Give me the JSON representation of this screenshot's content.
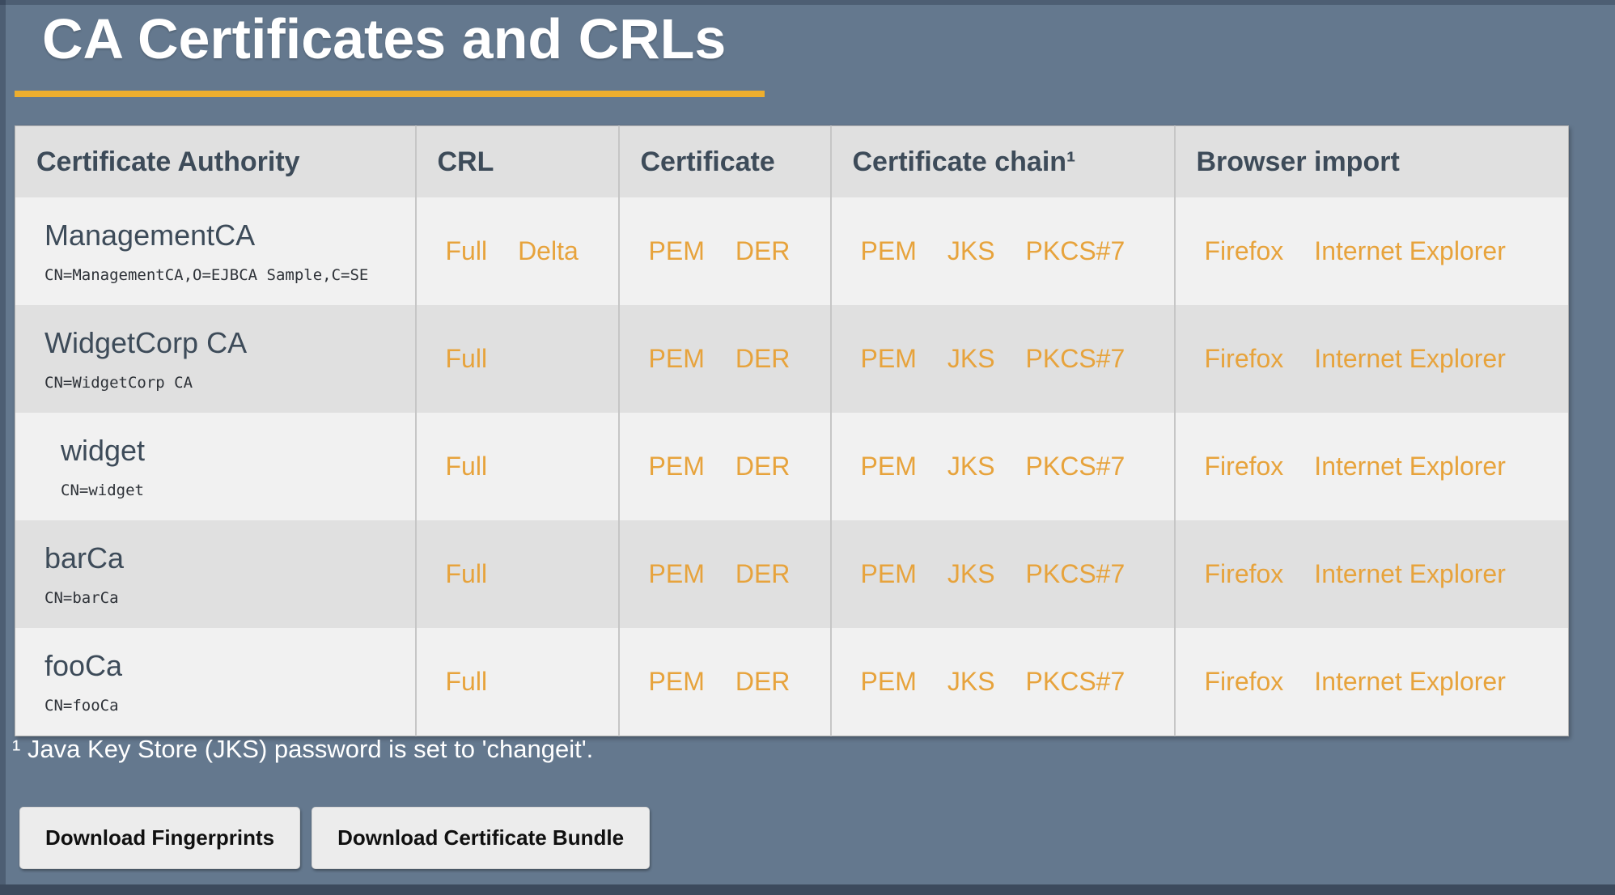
{
  "page": {
    "title": "CA Certificates and CRLs",
    "footnote": "¹ Java Key Store (JKS) password is set to 'changeit'.",
    "actions": {
      "fingerprints_label": "Download Fingerprints",
      "bundle_label": "Download Certificate Bundle"
    },
    "colors": {
      "background": "#64788e",
      "accent_rule": "#edae2e",
      "link": "#e7a33c",
      "header_bg": "#e0e0e0",
      "row_light": "#f1f1f1",
      "row_dark": "#e0e0e0",
      "heading_text": "#3d4b59"
    }
  },
  "table": {
    "columns": [
      {
        "label": "Certificate Authority",
        "group": "ca"
      },
      {
        "label": "CRL",
        "group": "crl",
        "key": "crl_links"
      },
      {
        "label": "Certificate",
        "group": "cert",
        "key": "certificate_links"
      },
      {
        "label": "Certificate chain¹",
        "group": "chain",
        "key": "chain_links"
      },
      {
        "label": "Browser import",
        "group": "browser",
        "key": "browser_links"
      }
    ],
    "rows": [
      {
        "name": "ManagementCA",
        "dn": "CN=ManagementCA,O=EJBCA Sample,C=SE",
        "indented": false,
        "crl_links": [
          "Full",
          "Delta"
        ],
        "certificate_links": [
          "PEM",
          "DER"
        ],
        "chain_links": [
          "PEM",
          "JKS",
          "PKCS#7"
        ],
        "browser_links": [
          "Firefox",
          "Internet Explorer"
        ]
      },
      {
        "name": "WidgetCorp CA",
        "dn": "CN=WidgetCorp CA",
        "indented": false,
        "crl_links": [
          "Full"
        ],
        "certificate_links": [
          "PEM",
          "DER"
        ],
        "chain_links": [
          "PEM",
          "JKS",
          "PKCS#7"
        ],
        "browser_links": [
          "Firefox",
          "Internet Explorer"
        ]
      },
      {
        "name": "widget",
        "dn": "CN=widget",
        "indented": true,
        "crl_links": [
          "Full"
        ],
        "certificate_links": [
          "PEM",
          "DER"
        ],
        "chain_links": [
          "PEM",
          "JKS",
          "PKCS#7"
        ],
        "browser_links": [
          "Firefox",
          "Internet Explorer"
        ]
      },
      {
        "name": "barCa",
        "dn": "CN=barCa",
        "indented": false,
        "crl_links": [
          "Full"
        ],
        "certificate_links": [
          "PEM",
          "DER"
        ],
        "chain_links": [
          "PEM",
          "JKS",
          "PKCS#7"
        ],
        "browser_links": [
          "Firefox",
          "Internet Explorer"
        ]
      },
      {
        "name": "fooCa",
        "dn": "CN=fooCa",
        "indented": false,
        "crl_links": [
          "Full"
        ],
        "certificate_links": [
          "PEM",
          "DER"
        ],
        "chain_links": [
          "PEM",
          "JKS",
          "PKCS#7"
        ],
        "browser_links": [
          "Firefox",
          "Internet Explorer"
        ]
      }
    ]
  }
}
